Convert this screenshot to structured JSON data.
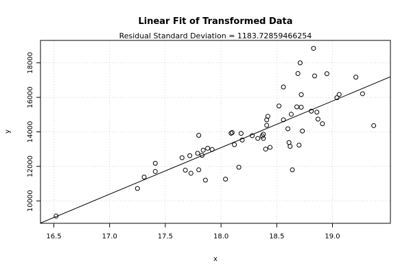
{
  "chart_data": {
    "type": "scatter",
    "title": "Linear Fit of Transformed Data",
    "subtitle": "Residual Standard Deviation =  1183.72859466254",
    "xlabel": "x",
    "ylabel": "y",
    "xlim": [
      16.38,
      19.52
    ],
    "ylim": [
      8700,
      19300
    ],
    "x_ticks": [
      16.5,
      17.0,
      17.5,
      18.0,
      18.5,
      19.0
    ],
    "x_tick_labels": [
      "16.5",
      "17.0",
      "17.5",
      "18.0",
      "18.5",
      "19.0"
    ],
    "y_ticks": [
      10000,
      12000,
      14000,
      16000,
      18000
    ],
    "y_tick_labels": [
      "10000",
      "12000",
      "14000",
      "16000",
      "18000"
    ],
    "grid": true,
    "fit_line": {
      "x": [
        16.38,
        19.52
      ],
      "y": [
        8713,
        17191
      ]
    },
    "points": [
      [
        16.52,
        9120
      ],
      [
        17.25,
        10720
      ],
      [
        17.31,
        11380
      ],
      [
        17.41,
        12180
      ],
      [
        17.41,
        11700
      ],
      [
        17.65,
        12500
      ],
      [
        17.68,
        11780
      ],
      [
        17.72,
        12620
      ],
      [
        17.73,
        11600
      ],
      [
        17.79,
        12760
      ],
      [
        17.8,
        13800
      ],
      [
        17.8,
        11800
      ],
      [
        17.83,
        12640
      ],
      [
        17.84,
        12940
      ],
      [
        17.86,
        11200
      ],
      [
        17.88,
        13050
      ],
      [
        17.92,
        12980
      ],
      [
        18.04,
        11260
      ],
      [
        18.09,
        13920
      ],
      [
        18.1,
        13960
      ],
      [
        18.12,
        13260
      ],
      [
        18.16,
        11950
      ],
      [
        18.18,
        13910
      ],
      [
        18.19,
        13530
      ],
      [
        18.28,
        13780
      ],
      [
        18.33,
        13620
      ],
      [
        18.37,
        13760
      ],
      [
        18.38,
        13860
      ],
      [
        18.38,
        13620
      ],
      [
        18.4,
        13000
      ],
      [
        18.41,
        14380
      ],
      [
        18.41,
        14700
      ],
      [
        18.42,
        14900
      ],
      [
        18.44,
        13100
      ],
      [
        18.52,
        15500
      ],
      [
        18.56,
        16600
      ],
      [
        18.56,
        14700
      ],
      [
        18.6,
        14180
      ],
      [
        18.61,
        13380
      ],
      [
        18.62,
        13160
      ],
      [
        18.63,
        15020
      ],
      [
        18.64,
        11800
      ],
      [
        18.68,
        15450
      ],
      [
        18.69,
        17380
      ],
      [
        18.7,
        13230
      ],
      [
        18.71,
        18000
      ],
      [
        18.72,
        16160
      ],
      [
        18.72,
        15430
      ],
      [
        18.73,
        14050
      ],
      [
        18.81,
        15200
      ],
      [
        18.83,
        18840
      ],
      [
        18.84,
        17240
      ],
      [
        18.86,
        15140
      ],
      [
        18.87,
        14740
      ],
      [
        18.91,
        14470
      ],
      [
        18.95,
        17370
      ],
      [
        19.04,
        15980
      ],
      [
        19.06,
        16170
      ],
      [
        19.21,
        17170
      ],
      [
        19.27,
        16210
      ],
      [
        19.37,
        14360
      ]
    ]
  }
}
